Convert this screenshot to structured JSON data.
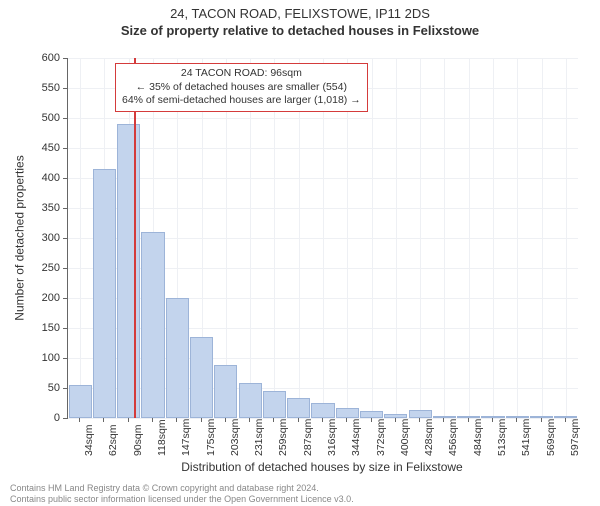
{
  "header": {
    "line1": "24, TACON ROAD, FELIXSTOWE, IP11 2DS",
    "line2": "Size of property relative to detached houses in Felixstowe"
  },
  "chart": {
    "type": "bar",
    "ylabel": "Number of detached properties",
    "xlabel": "Distribution of detached houses by size in Felixstowe",
    "ylim": [
      0,
      600
    ],
    "ytick_step": 50,
    "ytick_font_size": 11,
    "xtick_font_size": 10.5,
    "label_font_size": 12,
    "title_font_size": 13,
    "background_color": "#ffffff",
    "grid_color": "#eef0f4",
    "axis_color": "#666666",
    "bar_fill": "#c3d4ed",
    "bar_border": "#9db4d8",
    "marker_color": "#d43b3b",
    "marker_x_value": 96,
    "categories_sqm": [
      34,
      62,
      90,
      118,
      147,
      175,
      203,
      231,
      259,
      287,
      316,
      344,
      372,
      400,
      428,
      456,
      484,
      513,
      541,
      569,
      597
    ],
    "values": [
      55,
      415,
      490,
      310,
      200,
      135,
      88,
      58,
      45,
      33,
      25,
      16,
      12,
      6,
      14,
      4,
      4,
      2,
      2,
      2,
      2
    ],
    "bar_width_ratio": 0.95
  },
  "annotation": {
    "line1": "24 TACON ROAD: 96sqm",
    "line2": "← 35% of detached houses are smaller (554)",
    "line3": "64% of semi-detached houses are larger (1,018) →",
    "border_color": "#d43b3b",
    "font_size": 10.5
  },
  "footer": {
    "line1": "Contains HM Land Registry data © Crown copyright and database right 2024.",
    "line2": "Contains public sector information licensed under the Open Government Licence v3.0."
  }
}
